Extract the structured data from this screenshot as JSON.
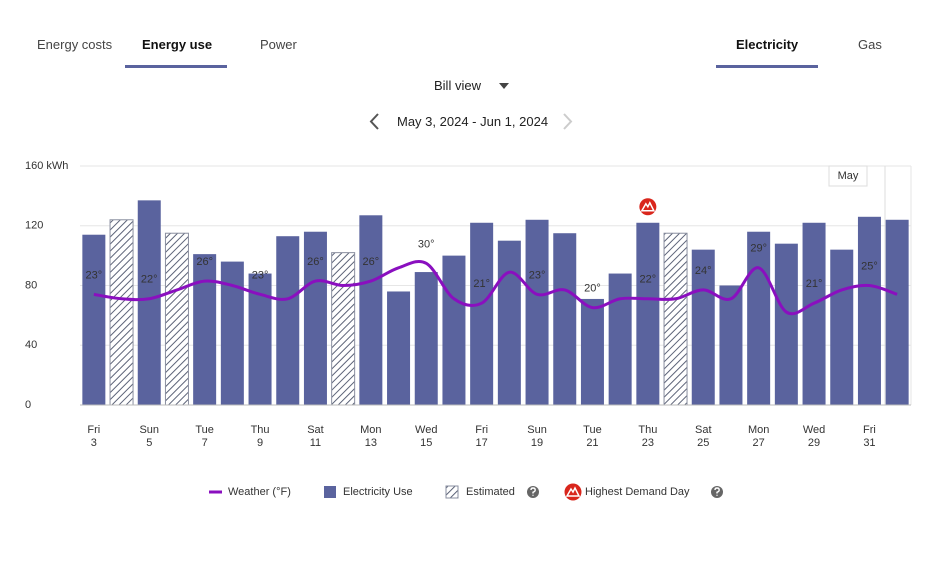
{
  "tabs": [
    "Energy costs",
    "Energy use",
    "Power"
  ],
  "fuel_tabs": [
    "Electricity",
    "Gas"
  ],
  "view_selector": "Bill view",
  "date_range": "May 3, 2024 - Jun 1, 2024",
  "chart_data": {
    "type": "bar",
    "categories": [
      "3",
      null,
      "5",
      null,
      "7",
      null,
      "9",
      null,
      "11",
      null,
      "13",
      null,
      "15",
      null,
      "17",
      null,
      "19",
      null,
      "21",
      null,
      "23",
      null,
      "25",
      null,
      "27",
      null,
      "29",
      null,
      "31",
      null
    ],
    "weekdays": [
      "Fri",
      null,
      "Sun",
      null,
      "Tue",
      null,
      "Thu",
      null,
      "Sat",
      null,
      "Mon",
      null,
      "Wed",
      null,
      "Fri",
      null,
      "Sun",
      null,
      "Tue",
      null,
      "Thu",
      null,
      "Sat",
      null,
      "Mon",
      null,
      "Wed",
      null,
      "Fri",
      null
    ],
    "ylim": [
      0,
      160
    ],
    "yticks": [
      0,
      40,
      80,
      120,
      {
        "value": 160,
        "label": "160 kWh"
      }
    ],
    "y2lim": [
      -2,
      52
    ],
    "grid": true,
    "month_label": "May",
    "series": [
      {
        "name": "Electricity Use",
        "color": "#5a639e",
        "values": [
          114,
          124,
          137,
          115,
          101,
          96,
          88,
          113,
          116,
          102,
          127,
          76,
          89,
          100,
          122,
          110,
          124,
          115,
          71,
          88,
          122,
          115,
          104,
          80,
          116,
          108,
          122,
          104,
          126,
          124
        ]
      },
      {
        "name": "Weather (°F)",
        "color": "#8a0fbf",
        "axis": "y2",
        "chart_type": "line",
        "values": [
          23,
          22,
          22,
          24,
          26,
          25,
          23,
          22,
          26,
          25,
          26,
          29,
          30,
          22,
          21,
          28,
          23,
          24,
          20,
          22,
          22,
          22,
          24,
          22,
          29,
          19,
          21,
          24,
          25,
          23
        ],
        "value_labels": [
          "23°",
          null,
          "22°",
          null,
          "26°",
          null,
          "23°",
          null,
          "26°",
          null,
          "26°",
          null,
          "30°",
          null,
          "21°",
          null,
          "23°",
          null,
          "20°",
          null,
          "22°",
          null,
          "24°",
          null,
          "29°",
          null,
          "21°",
          null,
          "25°",
          null
        ]
      }
    ],
    "estimated": {
      "label": "Estimated",
      "flags": [
        false,
        true,
        false,
        true,
        false,
        false,
        false,
        false,
        false,
        true,
        false,
        false,
        false,
        false,
        false,
        false,
        false,
        false,
        false,
        false,
        false,
        true,
        false,
        false,
        false,
        false,
        false,
        false,
        false,
        false
      ]
    },
    "highest_demand": {
      "label": "Highest Demand Day",
      "index": 20
    }
  }
}
